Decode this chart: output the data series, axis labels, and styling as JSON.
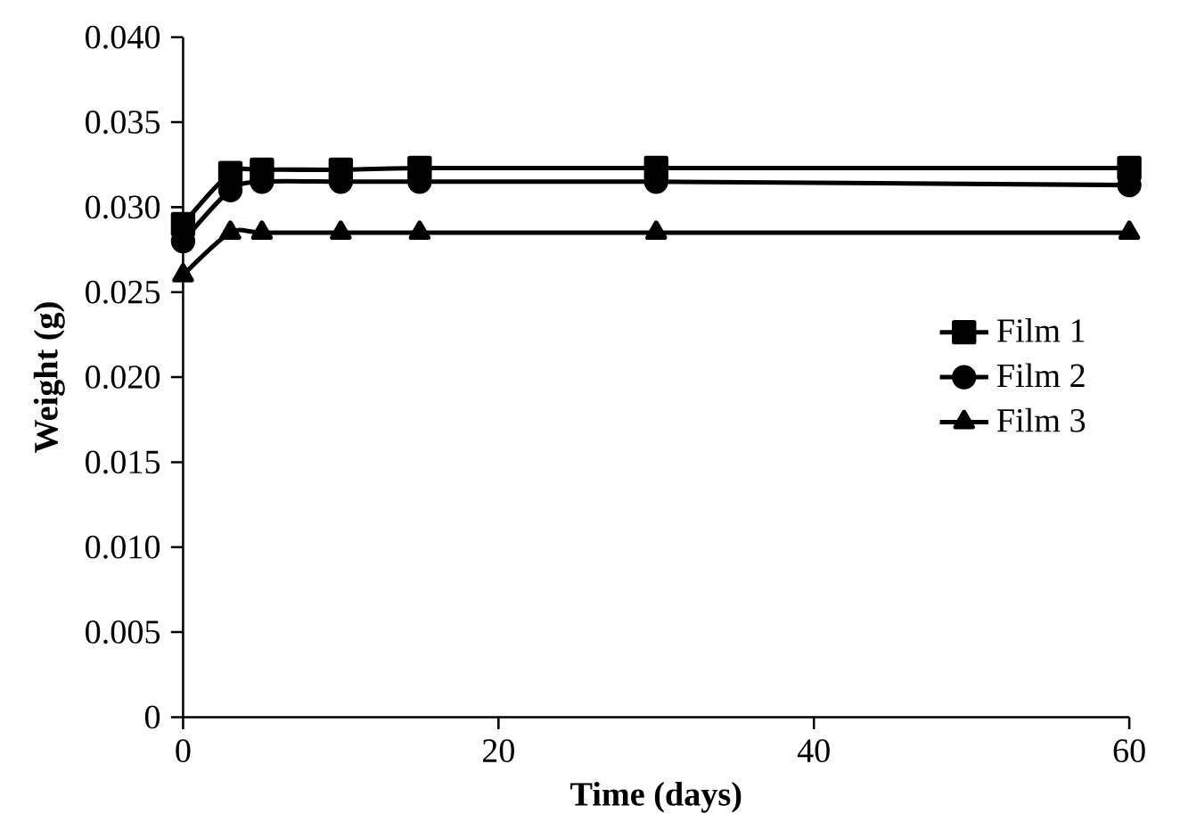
{
  "chart_data": {
    "type": "line",
    "xlabel": "Time (days)",
    "ylabel": "Weight (g)",
    "x": [
      0,
      3,
      5,
      10,
      15,
      30,
      60
    ],
    "series": [
      {
        "name": "Film 1",
        "color": "#000000",
        "marker": "square",
        "values": [
          0.029,
          0.032,
          0.0322,
          0.0322,
          0.0323,
          0.0323,
          0.0323
        ]
      },
      {
        "name": "Film 2",
        "color": "#000000",
        "marker": "circle",
        "values": [
          0.028,
          0.031,
          0.0315,
          0.0315,
          0.0315,
          0.0315,
          0.0313
        ]
      },
      {
        "name": "Film 3",
        "color": "#000000",
        "marker": "triangle",
        "values": [
          0.026,
          0.0285,
          0.0285,
          0.0285,
          0.0285,
          0.0285,
          0.0285
        ]
      }
    ],
    "xlim": [
      0,
      60
    ],
    "xticks": [
      0,
      20,
      40,
      60
    ],
    "ylim": [
      0,
      0.04
    ],
    "yticks": [
      {
        "value": 0,
        "label": "0"
      },
      {
        "value": 0.005,
        "label": "0.005"
      },
      {
        "value": 0.01,
        "label": "0.010"
      },
      {
        "value": 0.015,
        "label": "0.015"
      },
      {
        "value": 0.02,
        "label": "0.020"
      },
      {
        "value": 0.025,
        "label": "0.025"
      },
      {
        "value": 0.03,
        "label": "0.030"
      },
      {
        "value": 0.035,
        "label": "0.035"
      },
      {
        "value": 0.04,
        "label": "0.040"
      }
    ],
    "legend": "right",
    "line_style": "solid"
  }
}
